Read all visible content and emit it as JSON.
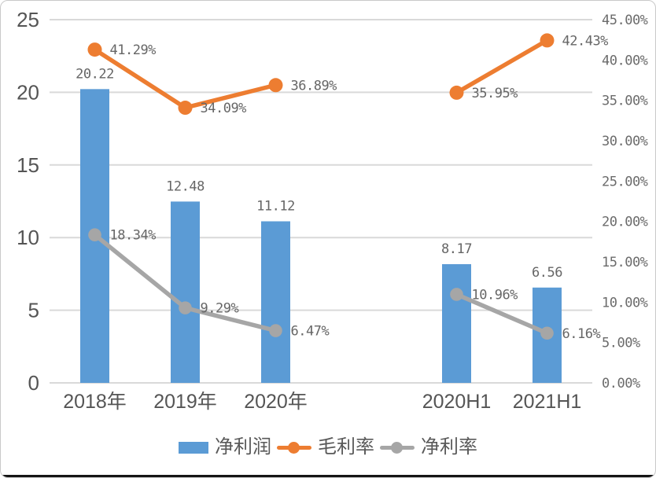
{
  "chart_data": {
    "type": "bar",
    "subtype": "combo-bar-line-dual-axis",
    "title": "",
    "categories": [
      "2018年",
      "2019年",
      "2020年",
      "",
      "2020H1",
      "2021H1"
    ],
    "bar_series": {
      "name": "净利润",
      "axis": "left",
      "color": "#5B9BD5",
      "values": [
        20.22,
        12.48,
        11.12,
        null,
        8.17,
        6.56
      ],
      "labels": [
        "20.22",
        "12.48",
        "11.12",
        null,
        "8.17",
        "6.56"
      ]
    },
    "line_series": [
      {
        "name": "毛利率",
        "axis": "right",
        "color": "#ED7D31",
        "values": [
          41.29,
          34.09,
          36.89,
          null,
          35.95,
          42.43
        ],
        "labels": [
          "41.29%",
          "34.09%",
          "36.89%",
          null,
          "35.95%",
          "42.43%"
        ]
      },
      {
        "name": "净利率",
        "axis": "right",
        "color": "#A6A6A6",
        "values": [
          18.34,
          9.29,
          6.47,
          null,
          10.96,
          6.16
        ],
        "labels": [
          "18.34%",
          "9.29%",
          "6.47%",
          null,
          "10.96%",
          "6.16%"
        ]
      }
    ],
    "left_axis": {
      "min": 0,
      "max": 25,
      "step": 5,
      "ticks_top_to_bottom": [
        "25",
        "20",
        "15",
        "10",
        "5",
        "0"
      ]
    },
    "right_axis": {
      "min": 0,
      "max": 45,
      "step": 5,
      "ticks_top_to_bottom": [
        "45.00%",
        "40.00%",
        "35.00%",
        "30.00%",
        "25.00%",
        "20.00%",
        "15.00%",
        "10.00%",
        "5.00%",
        "0.00%"
      ]
    },
    "grid": true,
    "legend_position": "bottom",
    "legend": [
      {
        "label": "净利润",
        "marker": "square",
        "color": "#5B9BD5"
      },
      {
        "label": "毛利率",
        "marker": "line-dot",
        "color": "#ED7D31"
      },
      {
        "label": "净利率",
        "marker": "line-dot",
        "color": "#A6A6A6"
      }
    ],
    "colors": {
      "grid": "#D9D9D9",
      "axis_text": "#555555",
      "data_label_text": "#666666"
    }
  }
}
